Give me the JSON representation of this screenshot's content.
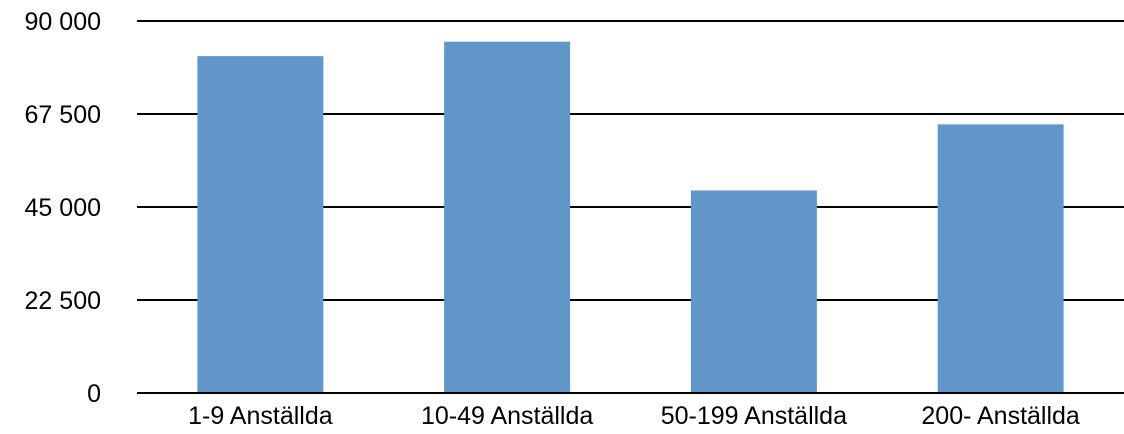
{
  "chart_data": {
    "type": "bar",
    "title": "",
    "xlabel": "",
    "ylabel": "",
    "categories": [
      "1-9 Anställda",
      "10-49 Anställda",
      "50-199 Anställda",
      "200- Anställda"
    ],
    "values": [
      81500,
      85000,
      49000,
      65000
    ],
    "ylim": [
      0,
      90000
    ],
    "y_ticks": [
      0,
      22500,
      45000,
      67500,
      90000
    ],
    "y_tick_labels": [
      "0",
      "22 500",
      "45 000",
      "67 500",
      "90 000"
    ],
    "grid": true,
    "legend": "none",
    "bar_color": "#6196CA",
    "grid_color": "#000000"
  }
}
